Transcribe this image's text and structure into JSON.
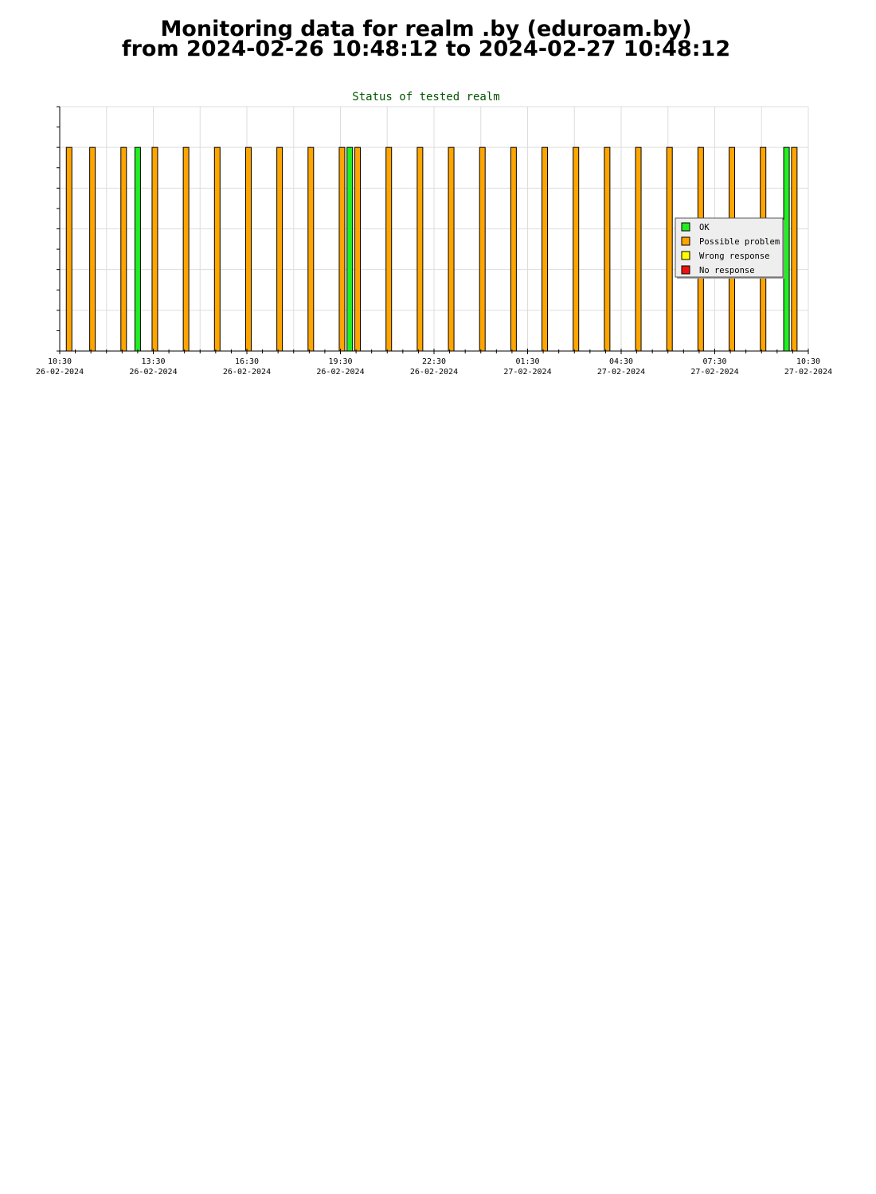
{
  "header": {
    "title_line1": "Monitoring data for realm .by  (eduroam.by)",
    "title_line2": "from 2024-02-26  10:48:12  to 2024-02-27  10:48:12"
  },
  "chart_data": {
    "type": "bar",
    "title": "Status of tested realm",
    "x_axis": {
      "start": "2024-02-26 10:30",
      "end": "2024-02-27 10:30",
      "ticks": [
        {
          "time": "10:30",
          "date": "26-02-2024"
        },
        {
          "time": "13:30",
          "date": "26-02-2024"
        },
        {
          "time": "16:30",
          "date": "26-02-2024"
        },
        {
          "time": "19:30",
          "date": "26-02-2024"
        },
        {
          "time": "22:30",
          "date": "26-02-2024"
        },
        {
          "time": "01:30",
          "date": "27-02-2024"
        },
        {
          "time": "04:30",
          "date": "27-02-2024"
        },
        {
          "time": "07:30",
          "date": "27-02-2024"
        },
        {
          "time": "10:30",
          "date": "27-02-2024"
        }
      ]
    },
    "y_axis": {
      "tick_labels": false,
      "grid": true
    },
    "legend": {
      "placement": "right",
      "items": [
        {
          "key": "ok",
          "label": "OK",
          "color": "#22ee22"
        },
        {
          "key": "possible_problem",
          "label": "Possible problem",
          "color": "#ffa500"
        },
        {
          "key": "wrong_response",
          "label": "Wrong response",
          "color": "#ffff00"
        },
        {
          "key": "no_response",
          "label": "No response",
          "color": "#ee1111"
        }
      ]
    },
    "points": [
      {
        "time": "2024-02-26 10:48",
        "status": "possible_problem"
      },
      {
        "time": "2024-02-26 11:33",
        "status": "possible_problem"
      },
      {
        "time": "2024-02-26 12:33",
        "status": "possible_problem"
      },
      {
        "time": "2024-02-26 13:00",
        "status": "ok"
      },
      {
        "time": "2024-02-26 13:33",
        "status": "possible_problem"
      },
      {
        "time": "2024-02-26 14:33",
        "status": "possible_problem"
      },
      {
        "time": "2024-02-26 15:33",
        "status": "possible_problem"
      },
      {
        "time": "2024-02-26 16:33",
        "status": "possible_problem"
      },
      {
        "time": "2024-02-26 17:33",
        "status": "possible_problem"
      },
      {
        "time": "2024-02-26 18:33",
        "status": "possible_problem"
      },
      {
        "time": "2024-02-26 19:33",
        "status": "possible_problem"
      },
      {
        "time": "2024-02-26 19:48",
        "status": "ok"
      },
      {
        "time": "2024-02-26 20:03",
        "status": "possible_problem"
      },
      {
        "time": "2024-02-26 21:03",
        "status": "possible_problem"
      },
      {
        "time": "2024-02-26 22:03",
        "status": "possible_problem"
      },
      {
        "time": "2024-02-26 23:03",
        "status": "possible_problem"
      },
      {
        "time": "2024-02-27 00:03",
        "status": "possible_problem"
      },
      {
        "time": "2024-02-27 01:03",
        "status": "possible_problem"
      },
      {
        "time": "2024-02-27 02:03",
        "status": "possible_problem"
      },
      {
        "time": "2024-02-27 03:03",
        "status": "possible_problem"
      },
      {
        "time": "2024-02-27 04:03",
        "status": "possible_problem"
      },
      {
        "time": "2024-02-27 05:03",
        "status": "possible_problem"
      },
      {
        "time": "2024-02-27 06:03",
        "status": "possible_problem"
      },
      {
        "time": "2024-02-27 07:03",
        "status": "possible_problem"
      },
      {
        "time": "2024-02-27 08:03",
        "status": "possible_problem"
      },
      {
        "time": "2024-02-27 09:03",
        "status": "possible_problem"
      },
      {
        "time": "2024-02-27 09:48",
        "status": "ok"
      },
      {
        "time": "2024-02-27 10:03",
        "status": "possible_problem"
      }
    ]
  }
}
